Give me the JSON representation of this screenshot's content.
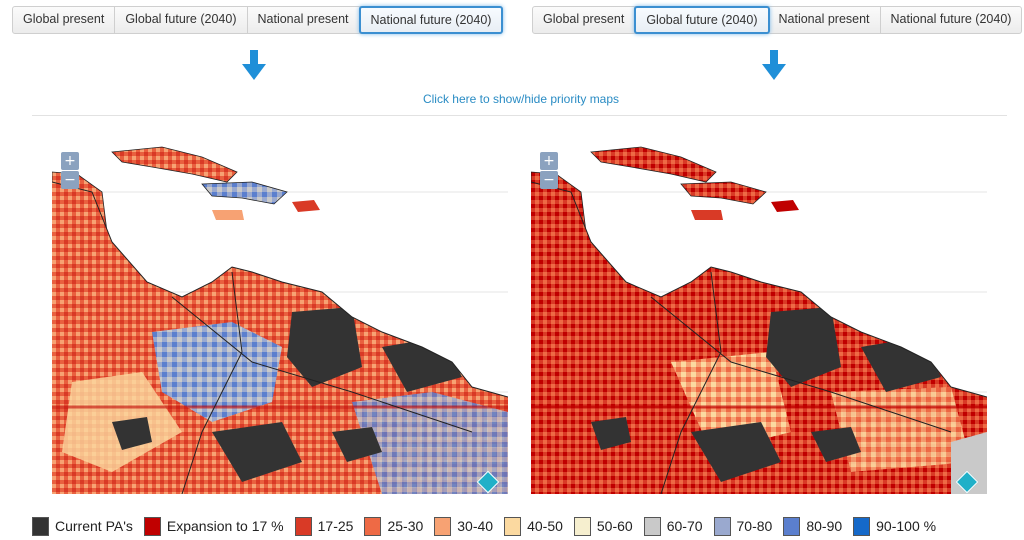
{
  "left_panel": {
    "tabs": [
      {
        "label": "Global present",
        "active": false
      },
      {
        "label": "Global future (2040)",
        "active": false
      },
      {
        "label": "National present",
        "active": false
      },
      {
        "label": "National future (2040)",
        "active": true
      }
    ]
  },
  "right_panel": {
    "tabs": [
      {
        "label": "Global present",
        "active": false
      },
      {
        "label": "Global future (2040)",
        "active": true
      },
      {
        "label": "National present",
        "active": false
      },
      {
        "label": "National future (2040)",
        "active": false
      }
    ]
  },
  "toggle_link": "Click here to show/hide priority maps",
  "zoom": {
    "in_label": "+",
    "out_label": "−"
  },
  "icons": {
    "arrow": "down-arrow-icon",
    "layers": "layers-icon"
  },
  "colors": {
    "accent": "#1f8fd8",
    "link": "#2a8cc4"
  },
  "legend": [
    {
      "label": "Current PA's",
      "color": "#333333"
    },
    {
      "label": "Expansion to 17 %",
      "color": "#c00000"
    },
    {
      "label": "17-25",
      "color": "#d93a26"
    },
    {
      "label": "25-30",
      "color": "#ee6a45"
    },
    {
      "label": "30-40",
      "color": "#f7a273"
    },
    {
      "label": "40-50",
      "color": "#fbd9a0"
    },
    {
      "label": "50-60",
      "color": "#f6efcf"
    },
    {
      "label": "60-70",
      "color": "#c9c9c9"
    },
    {
      "label": "70-80",
      "color": "#9aa9cf"
    },
    {
      "label": "80-90",
      "color": "#5b7fce"
    },
    {
      "label": "90-100 %",
      "color": "#1569c9"
    }
  ]
}
